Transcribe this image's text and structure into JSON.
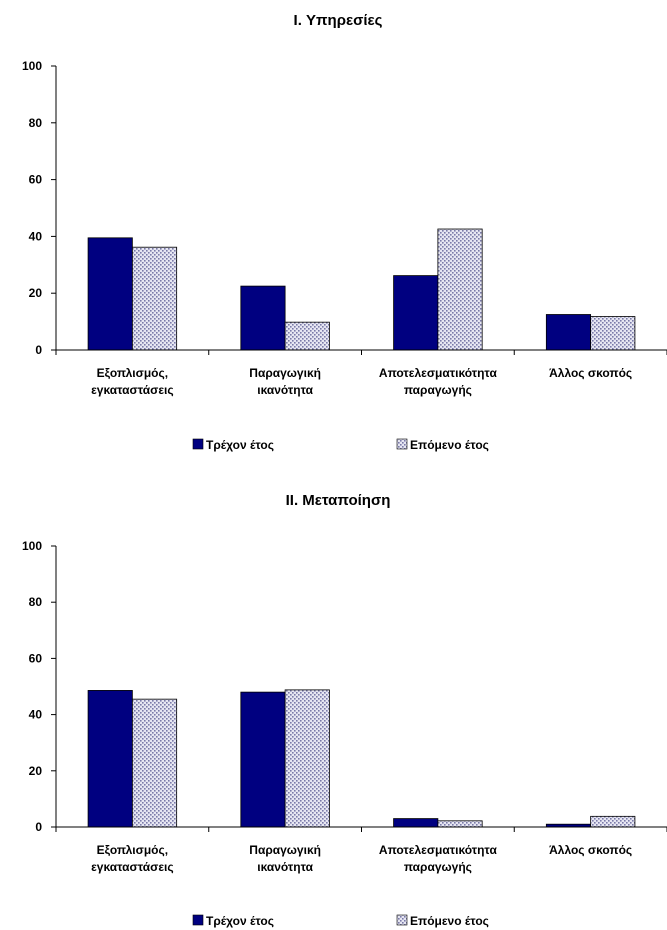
{
  "chart_data": [
    {
      "type": "bar",
      "title": "I. Υπηρεσίες",
      "categories": [
        [
          "Εξοπλισμός,",
          "εγκαταστάσεις"
        ],
        [
          "Παραγωγική",
          "ικανότητα"
        ],
        [
          "Αποτελεσματικότητα",
          "παραγωγής"
        ],
        [
          "Άλλος σκοπός"
        ]
      ],
      "series": [
        {
          "name": "Τρέχον έτος",
          "values": [
            39.5,
            22.5,
            26.2,
            12.5
          ],
          "color": "#000080",
          "pattern": "solid"
        },
        {
          "name": "Επόμενο έτος",
          "values": [
            36.2,
            9.8,
            42.6,
            11.8
          ],
          "color": "#c8c8e0",
          "pattern": "dotted"
        }
      ],
      "ylim": [
        0,
        100
      ],
      "yticks": [
        "0",
        "20",
        "40",
        "60",
        "80",
        "100"
      ],
      "legend_position": "bottom",
      "grid": false
    },
    {
      "type": "bar",
      "title": "II. Μεταποίηση",
      "categories": [
        [
          "Εξοπλισμός,",
          "εγκαταστάσεις"
        ],
        [
          "Παραγωγική",
          "ικανότητα"
        ],
        [
          "Αποτελεσματικότητα",
          "παραγωγής"
        ],
        [
          "Άλλος σκοπός"
        ]
      ],
      "series": [
        {
          "name": "Τρέχον έτος",
          "values": [
            48.6,
            48.0,
            3.0,
            1.0
          ],
          "color": "#000080",
          "pattern": "solid"
        },
        {
          "name": "Επόμενο έτος",
          "values": [
            45.5,
            48.8,
            2.2,
            3.8
          ],
          "color": "#c8c8e0",
          "pattern": "dotted"
        }
      ],
      "ylim": [
        0,
        100
      ],
      "yticks": [
        "0",
        "20",
        "40",
        "60",
        "80",
        "100"
      ],
      "legend_position": "bottom",
      "grid": false
    }
  ]
}
